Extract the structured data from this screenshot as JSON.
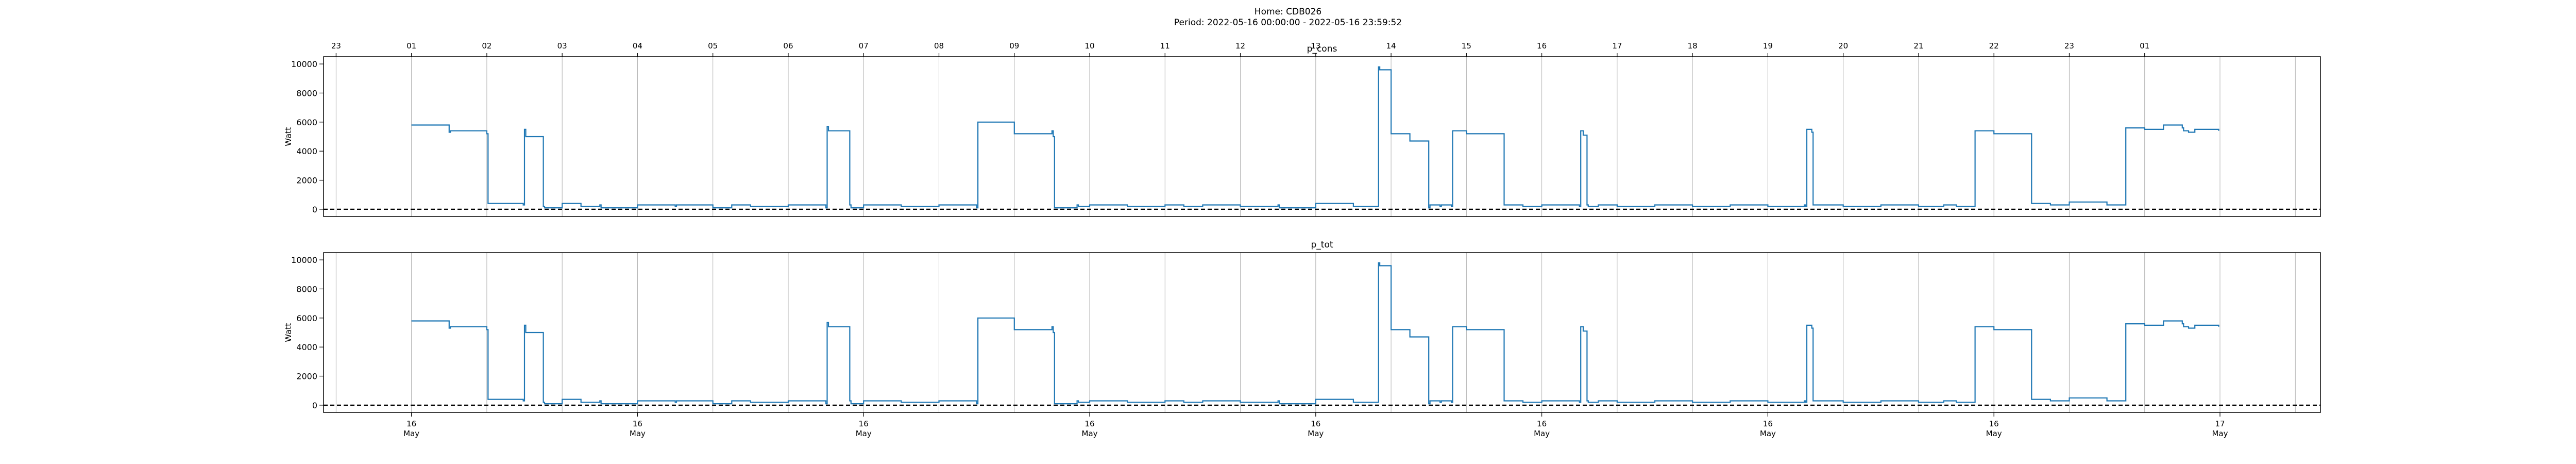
{
  "figure": {
    "title": "Home: CDB026",
    "subtitle": "Period: 2022-05-16 00:00:00 - 2022-05-16 23:59:52"
  },
  "colors": {
    "series": "#1f77b4",
    "zero_line": "#000000",
    "grid": "#b0b0b0"
  },
  "chart_data": [
    {
      "type": "line",
      "title": "p_cons",
      "xlabel": "",
      "ylabel": "Watt",
      "xlim": [
        "2022-05-15 22:50",
        "2022-05-17 01:20"
      ],
      "ylim": [
        -500,
        10500
      ],
      "yticks": [
        0,
        2000,
        4000,
        6000,
        8000,
        10000
      ],
      "top_ticks": [
        "23",
        "01",
        "02",
        "03",
        "04",
        "05",
        "06",
        "07",
        "08",
        "09",
        "10",
        "11",
        "12",
        "13",
        "14",
        "15",
        "16",
        "17",
        "18",
        "19",
        "20",
        "21",
        "22",
        "23",
        "01"
      ],
      "grid": "vertical",
      "zero_line": "dashed",
      "x_time": [
        "00:00",
        "00:30",
        "00:31",
        "01:00",
        "01:01",
        "01:29",
        "01:30",
        "01:31",
        "01:45",
        "01:46",
        "02:00",
        "02:15",
        "02:30",
        "02:31",
        "03:00",
        "03:30",
        "03:31",
        "04:00",
        "04:15",
        "04:30",
        "05:00",
        "05:30",
        "05:31",
        "05:32",
        "05:49",
        "05:50",
        "06:00",
        "06:30",
        "07:00",
        "07:30",
        "07:31",
        "08:00",
        "08:30",
        "08:31",
        "08:32",
        "08:50",
        "08:51",
        "09:00",
        "09:30",
        "10:00",
        "10:15",
        "10:30",
        "11:00",
        "11:30",
        "11:31",
        "12:00",
        "12:30",
        "12:50",
        "12:51",
        "13:00",
        "13:15",
        "13:30",
        "13:31",
        "13:39",
        "13:40",
        "13:48",
        "13:49",
        "14:00",
        "14:30",
        "14:45",
        "15:00",
        "15:30",
        "15:31",
        "15:33",
        "15:36",
        "15:37",
        "15:45",
        "16:00",
        "16:30",
        "17:00",
        "17:30",
        "18:00",
        "18:29",
        "18:30",
        "18:31",
        "18:35",
        "18:36",
        "19:00",
        "19:30",
        "20:00",
        "20:20",
        "20:30",
        "20:45",
        "21:00",
        "21:30",
        "21:45",
        "22:00",
        "22:30",
        "22:45",
        "23:00",
        "23:15",
        "23:30",
        "23:31",
        "23:35",
        "23:40",
        "23:59"
      ],
      "y_values": [
        5800,
        5300,
        5400,
        5200,
        400,
        300,
        5500,
        5000,
        200,
        100,
        400,
        200,
        300,
        100,
        300,
        200,
        300,
        100,
        300,
        200,
        300,
        100,
        5700,
        5400,
        300,
        100,
        300,
        200,
        300,
        100,
        6000,
        5200,
        5400,
        5000,
        100,
        300,
        200,
        300,
        200,
        300,
        200,
        300,
        200,
        300,
        100,
        400,
        200,
        9800,
        9600,
        5200,
        4700,
        100,
        300,
        200,
        300,
        200,
        5400,
        5200,
        300,
        200,
        300,
        200,
        5400,
        5100,
        300,
        200,
        300,
        200,
        300,
        200,
        300,
        200,
        300,
        200,
        5500,
        5300,
        300,
        200,
        300,
        200,
        300,
        200,
        5400,
        5200,
        400,
        300,
        500,
        300,
        5600,
        5500,
        5800,
        5600,
        5400,
        5300,
        5500,
        5400
      ],
      "series": [
        {
          "values_ref": "y_values"
        }
      ]
    },
    {
      "type": "line",
      "title": "p_tot",
      "xlabel": "",
      "ylabel": "Watt",
      "xlim": [
        "2022-05-15 22:50",
        "2022-05-17 01:20"
      ],
      "ylim": [
        -500,
        10500
      ],
      "yticks": [
        0,
        2000,
        4000,
        6000,
        8000,
        10000
      ],
      "bottom_ticks": [
        {
          "day": "16",
          "month": "May"
        },
        {
          "day": "16",
          "month": "May"
        },
        {
          "day": "16",
          "month": "May"
        },
        {
          "day": "16",
          "month": "May"
        },
        {
          "day": "16",
          "month": "May"
        },
        {
          "day": "16",
          "month": "May"
        },
        {
          "day": "16",
          "month": "May"
        },
        {
          "day": "16",
          "month": "May"
        },
        {
          "day": "17",
          "month": "May"
        }
      ],
      "grid": "vertical",
      "zero_line": "dashed",
      "same_as": "p_cons"
    }
  ]
}
